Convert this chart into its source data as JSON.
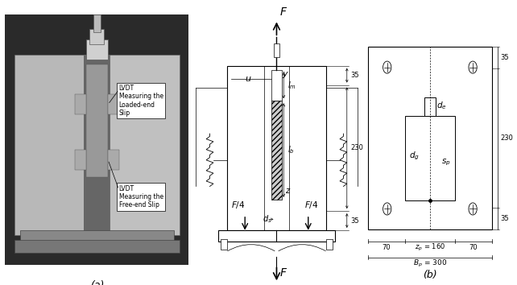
{
  "fig_width": 6.42,
  "fig_height": 3.54,
  "bg_color": "#ffffff",
  "caption_a": "(a)",
  "caption_b": "(b)",
  "label_lvdt1": "LVDT\nMeasuring the\nLoaded-end\nSlip",
  "label_lvdt2": "LVDT\nMeasuring the\nFree-end Slip",
  "photo_bg": "#444444",
  "photo_light_gray": "#b0b0b0",
  "photo_mid_gray": "#888888",
  "photo_dark_gray": "#333333"
}
